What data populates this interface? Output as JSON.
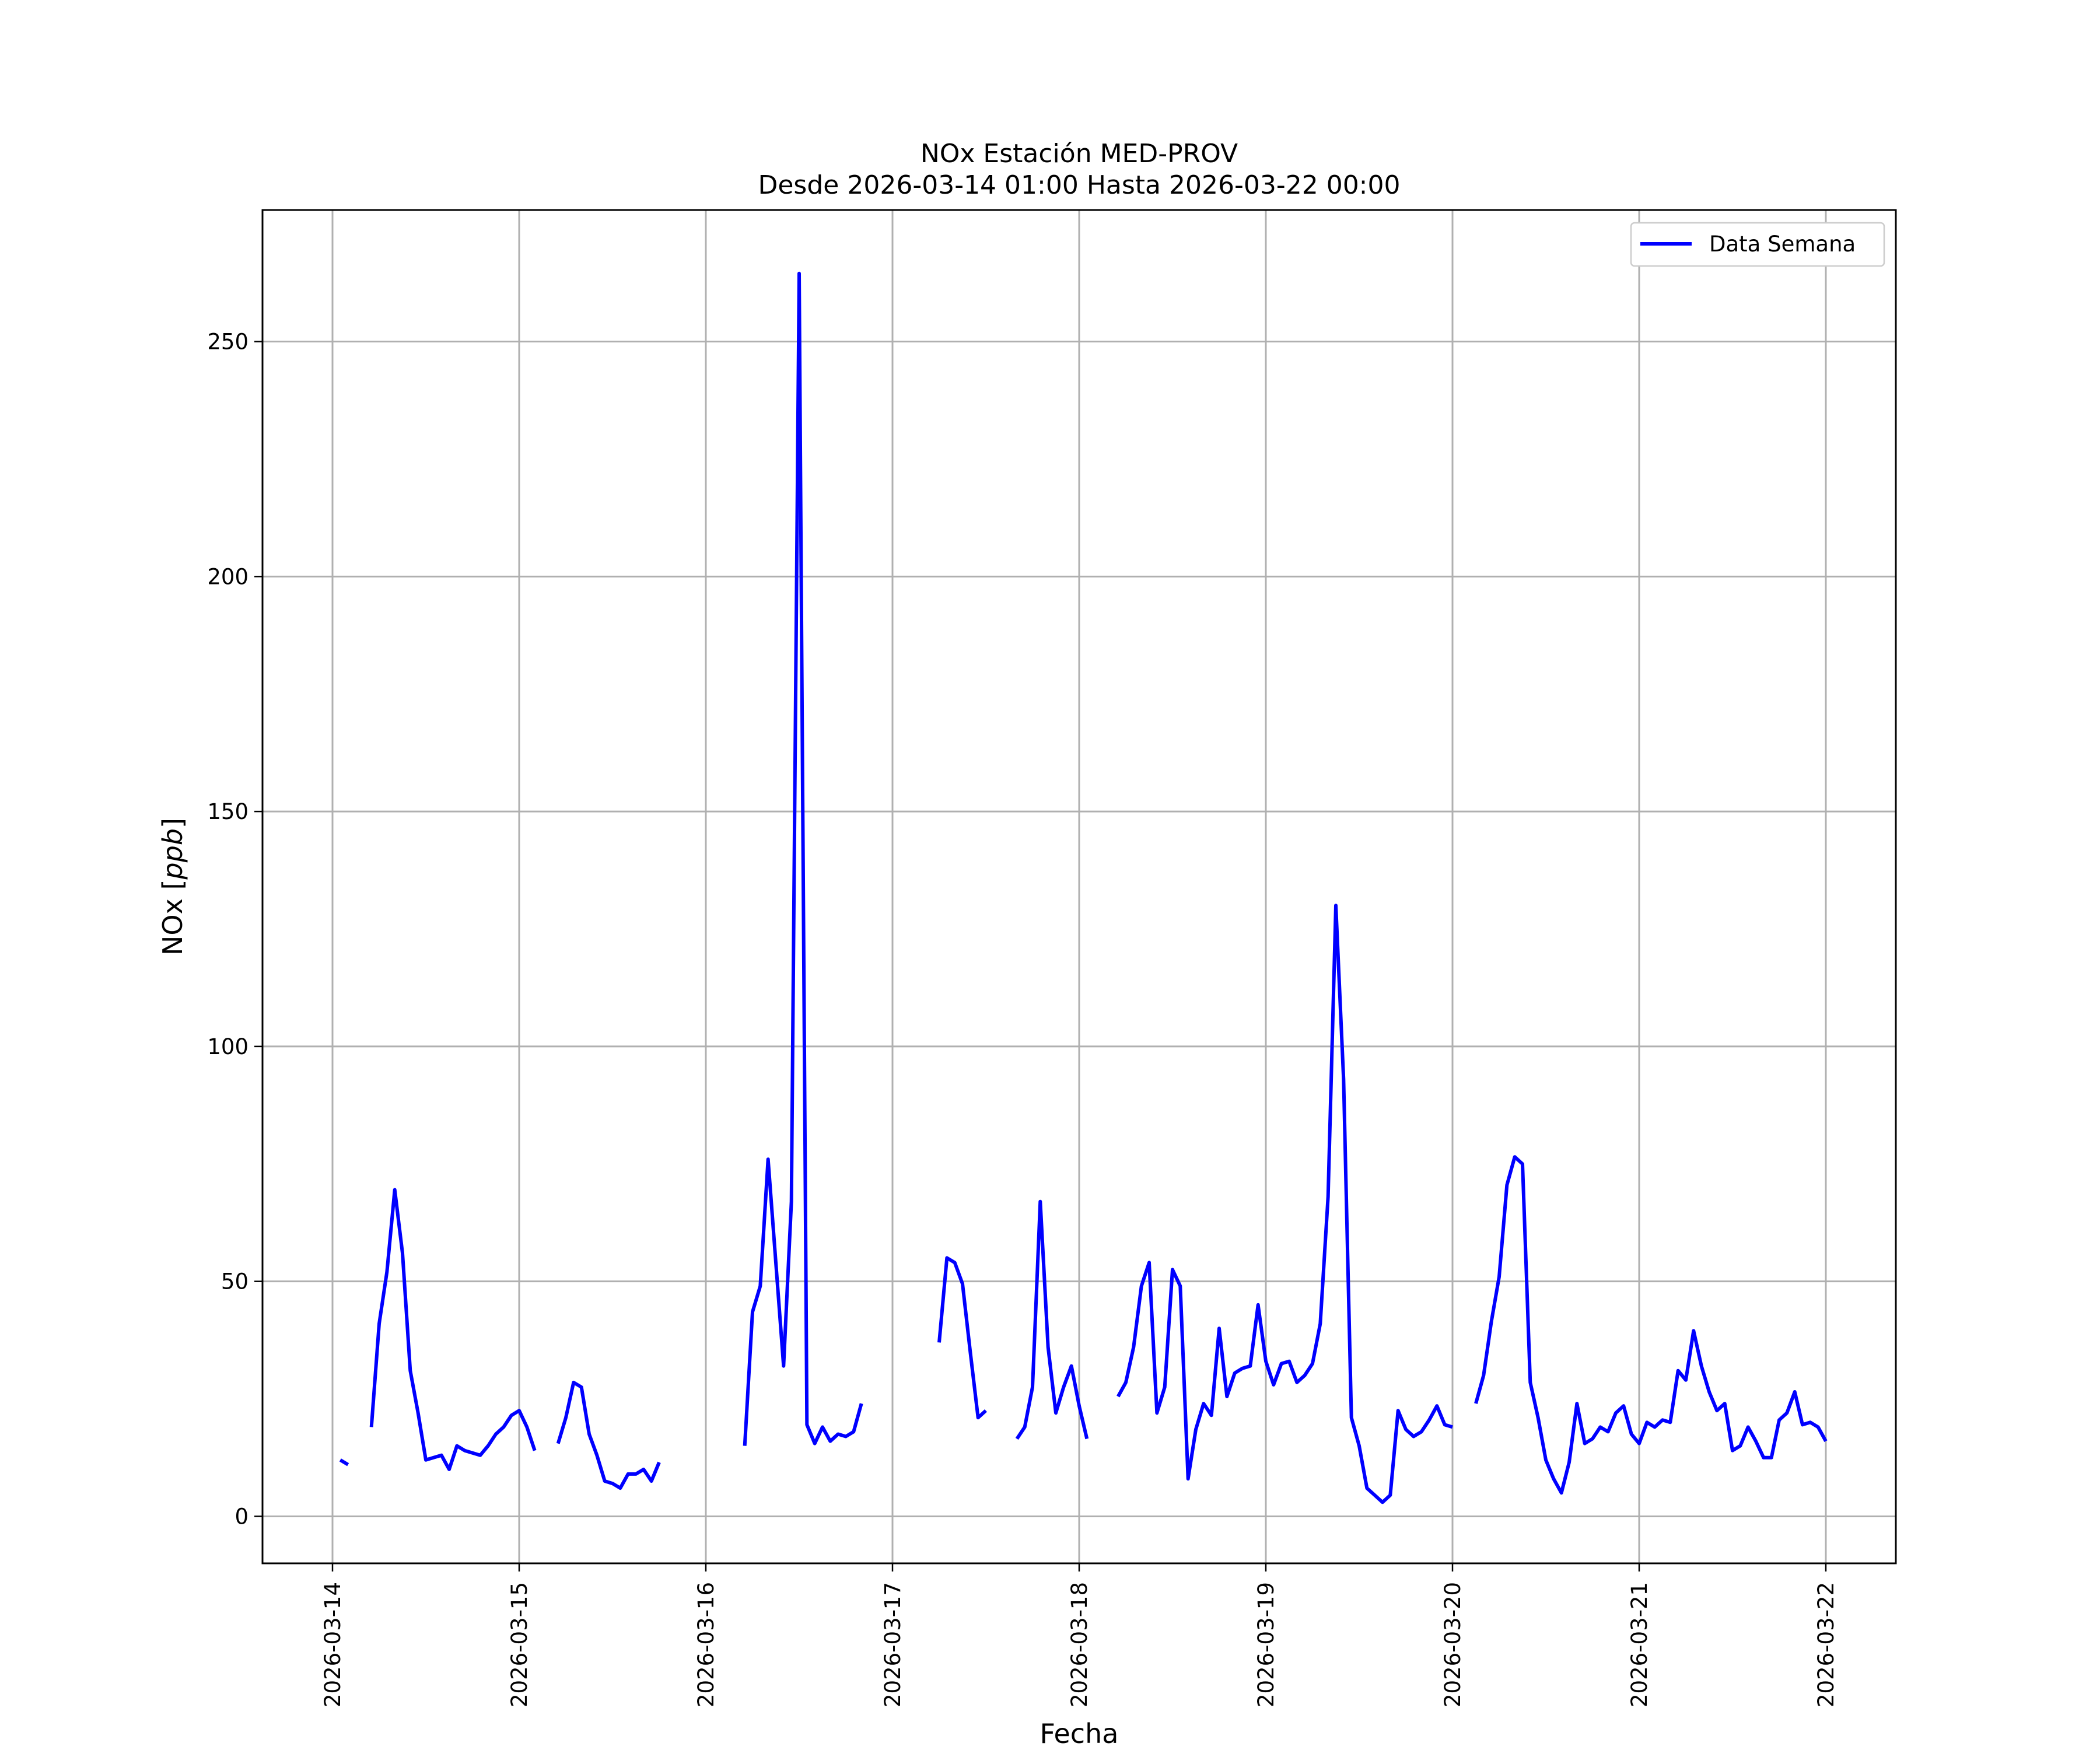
{
  "chart_data": {
    "type": "line",
    "title": "NOx Estación MED-PROV",
    "subtitle": "Desde 2026-03-14 01:00 Hasta 2026-03-22 00:00",
    "xlabel": "Fecha",
    "ylabel": "NOx [ppb]",
    "xlim": [
      "2026-03-13 15:00",
      "2026-03-22 09:00"
    ],
    "ylim": [
      -10,
      278
    ],
    "x_ticks": [
      "2026-03-14",
      "2026-03-15",
      "2026-03-16",
      "2026-03-17",
      "2026-03-18",
      "2026-03-19",
      "2026-03-20",
      "2026-03-21",
      "2026-03-22"
    ],
    "y_ticks": [
      0,
      50,
      100,
      150,
      200,
      250
    ],
    "grid": true,
    "legend": "top-right",
    "series": [
      {
        "name": "Data Semana",
        "color": "#0000ff",
        "segments": [
          [
            [
              "2026-03-14 01:00",
              12
            ],
            [
              "2026-03-14 02:00",
              11
            ]
          ],
          [
            [
              "2026-03-14 05:00",
              19
            ],
            [
              "2026-03-14 06:00",
              41
            ],
            [
              "2026-03-14 07:00",
              52
            ],
            [
              "2026-03-14 08:00",
              69.5
            ],
            [
              "2026-03-14 09:00",
              56
            ],
            [
              "2026-03-14 10:00",
              31
            ],
            [
              "2026-03-14 11:00",
              22
            ],
            [
              "2026-03-14 12:00",
              12
            ],
            [
              "2026-03-14 13:00",
              12.5
            ],
            [
              "2026-03-14 14:00",
              13
            ],
            [
              "2026-03-14 15:00",
              10
            ],
            [
              "2026-03-14 16:00",
              15
            ],
            [
              "2026-03-14 17:00",
              14
            ],
            [
              "2026-03-14 18:00",
              13.5
            ],
            [
              "2026-03-14 19:00",
              13
            ],
            [
              "2026-03-14 20:00",
              15
            ],
            [
              "2026-03-14 21:00",
              17.5
            ],
            [
              "2026-03-14 22:00",
              19
            ],
            [
              "2026-03-14 23:00",
              21.5
            ],
            [
              "2026-03-15 00:00",
              22.5
            ],
            [
              "2026-03-15 01:00",
              19
            ],
            [
              "2026-03-15 02:00",
              14
            ]
          ],
          [
            [
              "2026-03-15 05:00",
              15.5
            ],
            [
              "2026-03-15 06:00",
              21
            ],
            [
              "2026-03-15 07:00",
              28.5
            ],
            [
              "2026-03-15 08:00",
              27.5
            ],
            [
              "2026-03-15 09:00",
              17.5
            ],
            [
              "2026-03-15 10:00",
              13
            ],
            [
              "2026-03-15 11:00",
              7.5
            ],
            [
              "2026-03-15 12:00",
              7
            ],
            [
              "2026-03-15 13:00",
              6
            ],
            [
              "2026-03-15 14:00",
              9
            ],
            [
              "2026-03-15 15:00",
              9
            ],
            [
              "2026-03-15 16:00",
              10
            ],
            [
              "2026-03-15 17:00",
              7.5
            ],
            [
              "2026-03-15 18:00",
              11.5
            ]
          ],
          [
            [
              "2026-03-16 05:00",
              15
            ],
            [
              "2026-03-16 06:00",
              43.5
            ],
            [
              "2026-03-16 07:00",
              49
            ],
            [
              "2026-03-16 08:00",
              76
            ],
            [
              "2026-03-16 09:00",
              54
            ],
            [
              "2026-03-16 10:00",
              32
            ],
            [
              "2026-03-16 11:00",
              67
            ],
            [
              "2026-03-16 12:00",
              264.5
            ],
            [
              "2026-03-16 13:00",
              19.5
            ],
            [
              "2026-03-16 14:00",
              15.5
            ],
            [
              "2026-03-16 15:00",
              19
            ],
            [
              "2026-03-16 16:00",
              16
            ],
            [
              "2026-03-16 17:00",
              17.5
            ],
            [
              "2026-03-16 18:00",
              17
            ],
            [
              "2026-03-16 19:00",
              18
            ],
            [
              "2026-03-16 20:00",
              24
            ]
          ],
          [
            [
              "2026-03-17 06:00",
              37
            ],
            [
              "2026-03-17 07:00",
              55
            ],
            [
              "2026-03-17 08:00",
              54
            ],
            [
              "2026-03-17 09:00",
              49.5
            ],
            [
              "2026-03-17 10:00",
              35
            ],
            [
              "2026-03-17 11:00",
              21
            ],
            [
              "2026-03-17 12:00",
              22.5
            ]
          ],
          [
            [
              "2026-03-17 16:00",
              16.5
            ],
            [
              "2026-03-17 17:00",
              19
            ],
            [
              "2026-03-17 18:00",
              27.5
            ],
            [
              "2026-03-17 19:00",
              67
            ],
            [
              "2026-03-17 20:00",
              36
            ],
            [
              "2026-03-17 21:00",
              22
            ],
            [
              "2026-03-17 22:00",
              27.5
            ],
            [
              "2026-03-17 23:00",
              32
            ],
            [
              "2026-03-18 00:00",
              23.5
            ],
            [
              "2026-03-18 01:00",
              16.5
            ]
          ],
          [
            [
              "2026-03-18 05:00",
              25.5
            ],
            [
              "2026-03-18 06:00",
              28.5
            ],
            [
              "2026-03-18 07:00",
              36
            ],
            [
              "2026-03-18 08:00",
              49
            ],
            [
              "2026-03-18 09:00",
              54
            ],
            [
              "2026-03-18 10:00",
              22
            ],
            [
              "2026-03-18 11:00",
              27.5
            ],
            [
              "2026-03-18 12:00",
              52.5
            ],
            [
              "2026-03-18 13:00",
              49
            ],
            [
              "2026-03-18 14:00",
              8
            ],
            [
              "2026-03-18 15:00",
              18.5
            ],
            [
              "2026-03-18 16:00",
              24
            ],
            [
              "2026-03-18 17:00",
              21.5
            ],
            [
              "2026-03-18 18:00",
              40
            ],
            [
              "2026-03-18 19:00",
              25.5
            ],
            [
              "2026-03-18 20:00",
              30.5
            ],
            [
              "2026-03-18 21:00",
              31.5
            ],
            [
              "2026-03-18 22:00",
              32
            ],
            [
              "2026-03-18 23:00",
              45
            ],
            [
              "2026-03-19 00:00",
              33
            ],
            [
              "2026-03-19 01:00",
              28
            ],
            [
              "2026-03-19 02:00",
              32.5
            ],
            [
              "2026-03-19 03:00",
              33
            ],
            [
              "2026-03-19 04:00",
              28.5
            ],
            [
              "2026-03-19 05:00",
              30
            ],
            [
              "2026-03-19 06:00",
              32.5
            ],
            [
              "2026-03-19 07:00",
              41
            ],
            [
              "2026-03-19 08:00",
              68
            ],
            [
              "2026-03-19 09:00",
              130
            ],
            [
              "2026-03-19 10:00",
              93
            ],
            [
              "2026-03-19 11:00",
              21
            ],
            [
              "2026-03-19 12:00",
              15
            ],
            [
              "2026-03-19 13:00",
              6
            ],
            [
              "2026-03-19 14:00",
              4.5
            ],
            [
              "2026-03-19 15:00",
              3
            ],
            [
              "2026-03-19 16:00",
              4.5
            ],
            [
              "2026-03-19 17:00",
              22.5
            ],
            [
              "2026-03-19 18:00",
              18.5
            ],
            [
              "2026-03-19 19:00",
              17
            ],
            [
              "2026-03-19 20:00",
              18
            ],
            [
              "2026-03-19 21:00",
              20.5
            ],
            [
              "2026-03-19 22:00",
              23.5
            ],
            [
              "2026-03-19 23:00",
              19.5
            ],
            [
              "2026-03-20 00:00",
              19
            ]
          ],
          [
            [
              "2026-03-20 03:00",
              24
            ],
            [
              "2026-03-20 04:00",
              30
            ],
            [
              "2026-03-20 05:00",
              41.5
            ],
            [
              "2026-03-20 06:00",
              51
            ],
            [
              "2026-03-20 07:00",
              70.5
            ],
            [
              "2026-03-20 08:00",
              76.5
            ],
            [
              "2026-03-20 09:00",
              75
            ],
            [
              "2026-03-20 10:00",
              28.5
            ],
            [
              "2026-03-20 11:00",
              21
            ],
            [
              "2026-03-20 12:00",
              12
            ],
            [
              "2026-03-20 13:00",
              8
            ],
            [
              "2026-03-20 14:00",
              5
            ],
            [
              "2026-03-20 15:00",
              11.5
            ],
            [
              "2026-03-20 16:00",
              24
            ],
            [
              "2026-03-20 17:00",
              15.5
            ],
            [
              "2026-03-20 18:00",
              16.5
            ],
            [
              "2026-03-20 19:00",
              19
            ],
            [
              "2026-03-20 20:00",
              18
            ],
            [
              "2026-03-20 21:00",
              22
            ],
            [
              "2026-03-20 22:00",
              23.5
            ],
            [
              "2026-03-20 23:00",
              17.5
            ],
            [
              "2026-03-21 00:00",
              15.5
            ],
            [
              "2026-03-21 01:00",
              20
            ],
            [
              "2026-03-21 02:00",
              19
            ],
            [
              "2026-03-21 03:00",
              20.5
            ],
            [
              "2026-03-21 04:00",
              20
            ],
            [
              "2026-03-21 05:00",
              31
            ],
            [
              "2026-03-21 06:00",
              29
            ],
            [
              "2026-03-21 07:00",
              39.5
            ],
            [
              "2026-03-21 08:00",
              32
            ],
            [
              "2026-03-21 09:00",
              26.5
            ],
            [
              "2026-03-21 10:00",
              22.5
            ],
            [
              "2026-03-21 11:00",
              24
            ],
            [
              "2026-03-21 12:00",
              14
            ],
            [
              "2026-03-21 13:00",
              15
            ],
            [
              "2026-03-21 14:00",
              19
            ],
            [
              "2026-03-21 15:00",
              16
            ],
            [
              "2026-03-21 16:00",
              12.5
            ],
            [
              "2026-03-21 17:00",
              12.5
            ],
            [
              "2026-03-21 18:00",
              20.5
            ],
            [
              "2026-03-21 19:00",
              22
            ],
            [
              "2026-03-21 20:00",
              26.5
            ],
            [
              "2026-03-21 21:00",
              19.5
            ],
            [
              "2026-03-21 22:00",
              20
            ],
            [
              "2026-03-21 23:00",
              19
            ],
            [
              "2026-03-22 00:00",
              16
            ]
          ]
        ]
      }
    ]
  }
}
